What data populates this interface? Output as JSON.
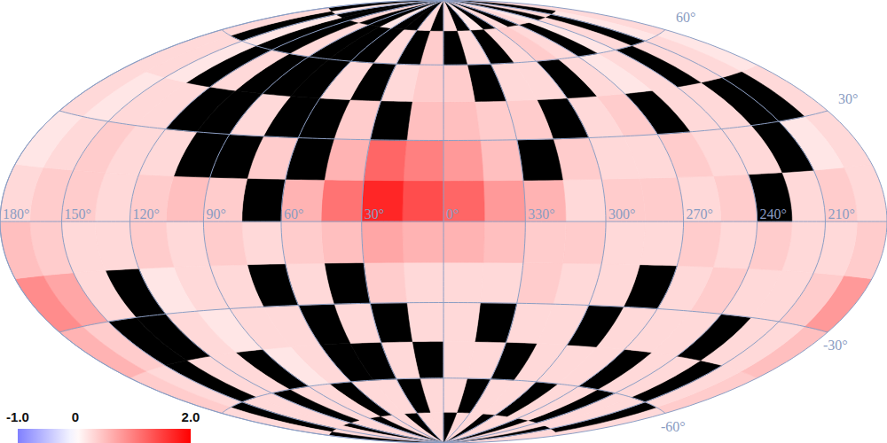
{
  "chart_data": {
    "type": "skymap",
    "grid": true,
    "xlim": [
      0,
      360
    ],
    "ylim": [
      -90,
      90
    ],
    "xticks": [
      {
        "value": 180,
        "label": "180°"
      },
      {
        "value": 150,
        "label": "150°"
      },
      {
        "value": 120,
        "label": "120°"
      },
      {
        "value": 90,
        "label": "90°"
      },
      {
        "value": 60,
        "label": "60°"
      },
      {
        "value": 30,
        "label": "30°"
      },
      {
        "value": 0,
        "label": "0°"
      },
      {
        "value": 330,
        "label": "330°"
      },
      {
        "value": 300,
        "label": "300°"
      },
      {
        "value": 270,
        "label": "270°"
      },
      {
        "value": 240,
        "label": "240°"
      },
      {
        "value": 210,
        "label": "210°"
      }
    ],
    "yticks": [
      {
        "value": 60,
        "label": "60°"
      },
      {
        "value": 30,
        "label": "30°"
      },
      {
        "value": 0,
        "label": null
      },
      {
        "value": -30,
        "label": "-30°"
      },
      {
        "value": -60,
        "label": "-60°"
      }
    ],
    "x_bins": [
      0,
      15,
      30,
      45,
      60,
      75,
      90,
      105,
      120,
      135,
      150,
      165,
      180,
      195,
      210,
      225,
      240,
      255,
      270,
      285,
      300,
      315,
      330,
      345,
      360
    ],
    "y_bins": [
      -90,
      -75,
      -60,
      -45,
      -30,
      -15,
      0,
      15,
      30,
      45,
      60,
      75,
      90
    ],
    "cells": [
      [
        0.3,
        0.3,
        null,
        0.3,
        0.3,
        null,
        0.3,
        0.3,
        null,
        0.3,
        0.3,
        null,
        0.3,
        0.3,
        null,
        0.3,
        0.3,
        null,
        0.3,
        0.3,
        null,
        0.3,
        0.3,
        null
      ],
      [
        0.3,
        null,
        0.3,
        0.3,
        null,
        0.3,
        0.3,
        null,
        0.3,
        0.3,
        null,
        0.3,
        0.3,
        null,
        0.3,
        0.3,
        null,
        0.3,
        0.3,
        null,
        0.3,
        0.3,
        null,
        0.3
      ],
      [
        null,
        0.3,
        null,
        null,
        0.3,
        0.2,
        null,
        0.3,
        0.3,
        null,
        0.3,
        0.4,
        0.4,
        0.3,
        null,
        0.3,
        0.3,
        null,
        0.3,
        0.3,
        0.3,
        null,
        0.3,
        0.3
      ],
      [
        0.3,
        null,
        0.3,
        null,
        0.3,
        0.3,
        0.2,
        0.3,
        null,
        null,
        0.4,
        0.6,
        0.5,
        0.3,
        0.3,
        null,
        0.3,
        0.3,
        0.3,
        null,
        0.3,
        0.3,
        null,
        0.3
      ],
      [
        0.3,
        0.4,
        null,
        0.3,
        null,
        0.3,
        0.3,
        0.2,
        null,
        0.3,
        0.7,
        0.9,
        0.8,
        0.4,
        0.3,
        0.3,
        0.4,
        0.3,
        null,
        0.3,
        0.3,
        0.4,
        0.3,
        0.3
      ],
      [
        0.6,
        0.7,
        0.5,
        0.4,
        0.3,
        0.4,
        0.3,
        0.4,
        0.3,
        0.3,
        0.4,
        0.5,
        0.4,
        0.3,
        0.3,
        0.4,
        0.3,
        0.4,
        0.3,
        0.3,
        0.4,
        0.4,
        0.5,
        0.6
      ],
      [
        1.4,
        1.7,
        1.1,
        0.6,
        null,
        0.4,
        0.5,
        0.4,
        0.3,
        0.4,
        0.4,
        0.3,
        0.3,
        0.4,
        0.3,
        null,
        0.4,
        0.3,
        0.4,
        0.4,
        0.3,
        0.6,
        0.8,
        1.2
      ],
      [
        1.0,
        1.2,
        0.6,
        null,
        0.4,
        null,
        null,
        0.3,
        0.3,
        0.4,
        0.3,
        0.2,
        0.3,
        0.2,
        null,
        0.3,
        0.3,
        0.4,
        0.3,
        0.3,
        0.4,
        null,
        0.5,
        0.8
      ],
      [
        0.5,
        null,
        0.4,
        null,
        null,
        0.3,
        null,
        null,
        0.3,
        0.3,
        0.2,
        0.3,
        0.3,
        null,
        null,
        0.3,
        0.3,
        null,
        0.4,
        0.3,
        null,
        0.4,
        0.4,
        0.5
      ],
      [
        0.4,
        0.3,
        null,
        0.3,
        null,
        null,
        null,
        0.3,
        null,
        0.2,
        0.3,
        0.3,
        0.2,
        0.3,
        0.3,
        null,
        0.3,
        0.2,
        0.3,
        null,
        0.3,
        0.3,
        null,
        0.4
      ],
      [
        0.4,
        null,
        0.3,
        null,
        null,
        null,
        0.3,
        null,
        null,
        0.2,
        null,
        0.3,
        0.3,
        0.2,
        null,
        0.3,
        0.2,
        null,
        0.3,
        0.4,
        0.3,
        null,
        0.3,
        null
      ],
      [
        null,
        0.3,
        null,
        null,
        0.2,
        null,
        null,
        0.3,
        null,
        null,
        0.2,
        null,
        0.3,
        null,
        0.3,
        null,
        0.2,
        0.3,
        null,
        0.3,
        null,
        0.2,
        null,
        0.3
      ]
    ],
    "color_range": [
      -1,
      2
    ],
    "color_ticks": [
      {
        "value": -1,
        "label": "-1.0"
      },
      0,
      {
        "value": 2,
        "label": "2.0"
      }
    ]
  }
}
